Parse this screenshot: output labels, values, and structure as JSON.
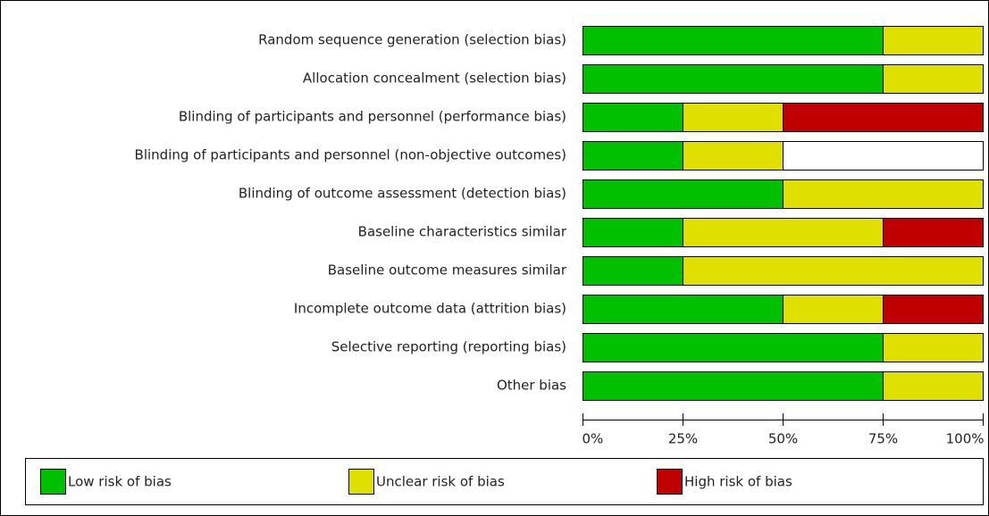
{
  "chart_data": {
    "type": "stacked-bar-horizontal",
    "categories": [
      "Random sequence generation (selection bias)",
      "Allocation concealment (selection bias)",
      "Blinding of participants and personnel (performance bias)",
      "Blinding of participants and personnel (non-objective outcomes)",
      "Blinding of outcome assessment (detection bias)",
      "Baseline characteristics similar",
      "Baseline outcome measures similar",
      "Incomplete outcome data (attrition bias)",
      "Selective reporting (reporting bias)",
      "Other bias"
    ],
    "series": [
      {
        "name": "Low risk of bias",
        "color": "#00c000",
        "values": [
          75,
          75,
          25,
          25,
          50,
          25,
          25,
          50,
          75,
          75
        ]
      },
      {
        "name": "Unclear risk of bias",
        "color": "#e0e000",
        "values": [
          25,
          25,
          25,
          25,
          50,
          50,
          75,
          25,
          25,
          25
        ]
      },
      {
        "name": "High risk of bias",
        "color": "#c00000",
        "values": [
          null,
          null,
          50,
          null,
          null,
          25,
          null,
          25,
          null,
          null
        ]
      }
    ],
    "xlim": [
      0,
      100
    ],
    "xticks": [
      {
        "value": 0,
        "label": "0%"
      },
      {
        "value": 25,
        "label": "25%"
      },
      {
        "value": 50,
        "label": "50%"
      },
      {
        "value": 75,
        "label": "75%"
      },
      {
        "value": 100,
        "label": "100%"
      }
    ],
    "legend": "bottom"
  }
}
